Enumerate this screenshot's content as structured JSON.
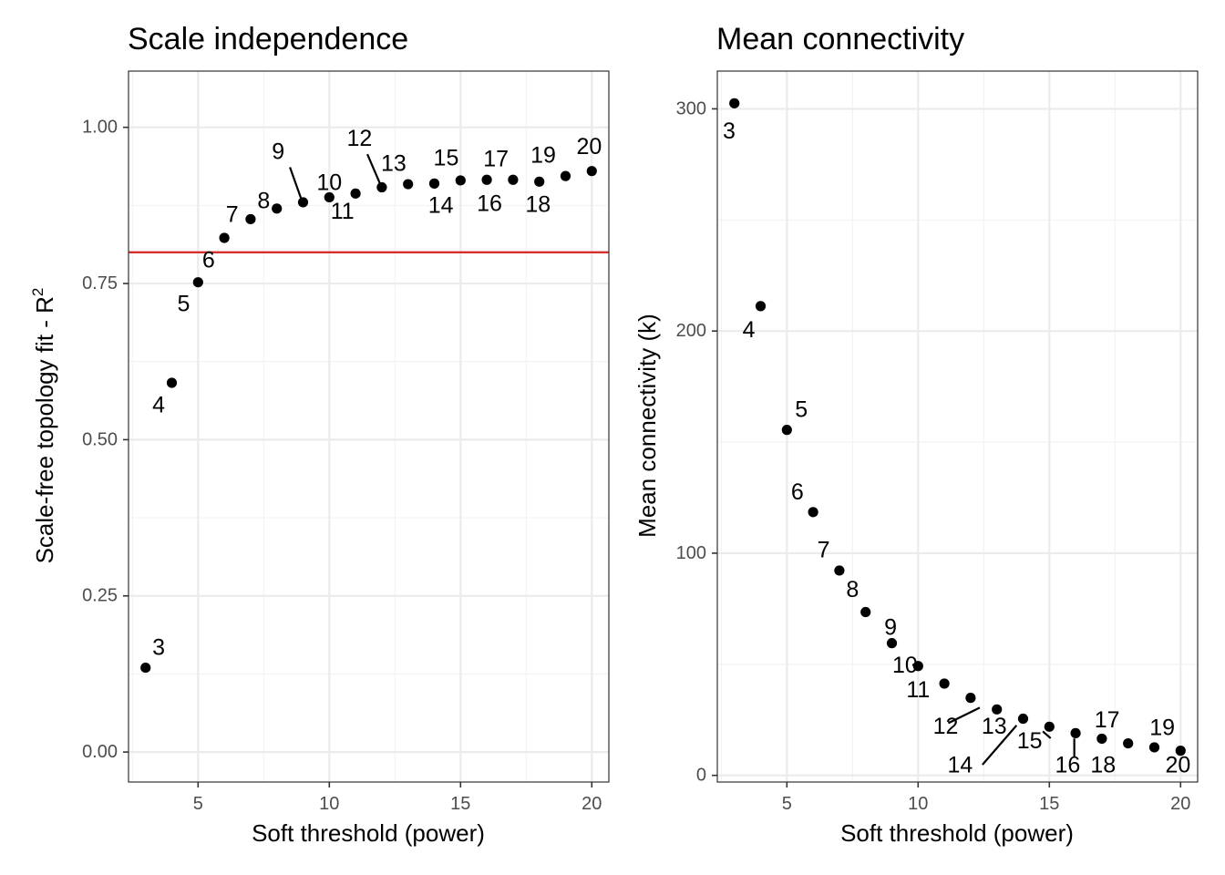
{
  "chart_data": [
    {
      "type": "scatter",
      "title": "Scale independence",
      "xlabel": "Soft threshold (power)",
      "ylabel": "Scale-free topology fit - R",
      "ylabel_superscript": "2",
      "xlim": [
        2.35,
        20.65
      ],
      "ylim": [
        -0.048,
        1.09
      ],
      "xticks": [
        5,
        10,
        15,
        20
      ],
      "xtick_labels": [
        "5",
        "10",
        "15",
        "20"
      ],
      "yticks": [
        0,
        0.25,
        0.5,
        0.75,
        1.0
      ],
      "ytick_labels": [
        "0.00",
        "0.25",
        "0.50",
        "0.75",
        "1.00"
      ],
      "grid": true,
      "hline": {
        "y": 0.8,
        "color": "#d7302c"
      },
      "x": [
        3,
        4,
        5,
        6,
        7,
        8,
        9,
        10,
        11,
        12,
        13,
        14,
        15,
        16,
        17,
        18,
        19,
        20
      ],
      "y": [
        0.135,
        0.591,
        0.752,
        0.823,
        0.853,
        0.87,
        0.88,
        0.888,
        0.894,
        0.904,
        0.909,
        0.91,
        0.915,
        0.916,
        0.916,
        0.913,
        0.922,
        0.93
      ],
      "point_labels": [
        "3",
        "4",
        "5",
        "6",
        "7",
        "8",
        "9",
        "10",
        "11",
        "12",
        "13",
        "14",
        "15",
        "16",
        "17",
        "18",
        "19",
        "20"
      ],
      "label_positions": [
        [
          3.5,
          0.167
        ],
        [
          3.5,
          0.555
        ],
        [
          4.45,
          0.717
        ],
        [
          5.4,
          0.787
        ],
        [
          6.3,
          0.86
        ],
        [
          7.5,
          0.882
        ],
        [
          8.05,
          0.961
        ],
        [
          10,
          0.911
        ],
        [
          10.5,
          0.865
        ],
        [
          11.15,
          0.982
        ],
        [
          12.45,
          0.942
        ],
        [
          14.25,
          0.875
        ],
        [
          14.45,
          0.951
        ],
        [
          16.1,
          0.878
        ],
        [
          16.35,
          0.949
        ],
        [
          17.95,
          0.876
        ],
        [
          18.15,
          0.955
        ],
        [
          19.9,
          0.969
        ]
      ],
      "leaders": [
        [
          8.5,
          0.936,
          8.95,
          0.883
        ],
        [
          11.45,
          0.957,
          11.95,
          0.908
        ]
      ]
    },
    {
      "type": "scatter",
      "title": "Mean connectivity",
      "xlabel": "Soft threshold (power)",
      "ylabel": "Mean connectivity (k)",
      "xlim": [
        2.35,
        20.65
      ],
      "ylim": [
        -3,
        317
      ],
      "xticks": [
        5,
        10,
        15,
        20
      ],
      "xtick_labels": [
        "5",
        "10",
        "15",
        "20"
      ],
      "yticks": [
        0,
        100,
        200,
        300
      ],
      "ytick_labels": [
        "0",
        "100",
        "200",
        "300"
      ],
      "grid": true,
      "x": [
        3,
        4,
        5,
        6,
        7,
        8,
        9,
        10,
        11,
        12,
        13,
        14,
        15,
        16,
        17,
        18,
        19,
        20
      ],
      "y": [
        302.5,
        211.2,
        155.5,
        118.5,
        92.2,
        73.5,
        59.5,
        49.2,
        41.3,
        34.9,
        29.7,
        25.5,
        21.9,
        19.0,
        16.5,
        14.4,
        12.6,
        11.1
      ],
      "point_labels": [
        "3",
        "4",
        "5",
        "6",
        "7",
        "8",
        "9",
        "10",
        "11",
        "12",
        "13",
        "14",
        "15",
        "16",
        "17",
        "18",
        "19",
        "20"
      ],
      "label_positions": [
        [
          2.8,
          290
        ],
        [
          3.55,
          200.5
        ],
        [
          5.55,
          164.5
        ],
        [
          5.4,
          127.5
        ],
        [
          6.4,
          101.5
        ],
        [
          7.5,
          83.5
        ],
        [
          8.95,
          66.5
        ],
        [
          9.5,
          49.5
        ],
        [
          10,
          38.5
        ],
        [
          11.05,
          22
        ],
        [
          12.9,
          22
        ],
        [
          11.6,
          4.5
        ],
        [
          14.25,
          15.5
        ],
        [
          15.7,
          4.5
        ],
        [
          17.2,
          25
        ],
        [
          17.05,
          4.5
        ],
        [
          19.3,
          21.5
        ],
        [
          19.9,
          4.5
        ]
      ],
      "leaders": [
        [
          9.78,
          49.8,
          9.97,
          49.3
        ],
        [
          11.15,
          23.5,
          12.35,
          30.5
        ],
        [
          12.45,
          4.8,
          13.75,
          22.5
        ],
        [
          15.05,
          16.7,
          14.75,
          19.8
        ],
        [
          15.95,
          8.3,
          15.95,
          16.6
        ]
      ]
    }
  ]
}
